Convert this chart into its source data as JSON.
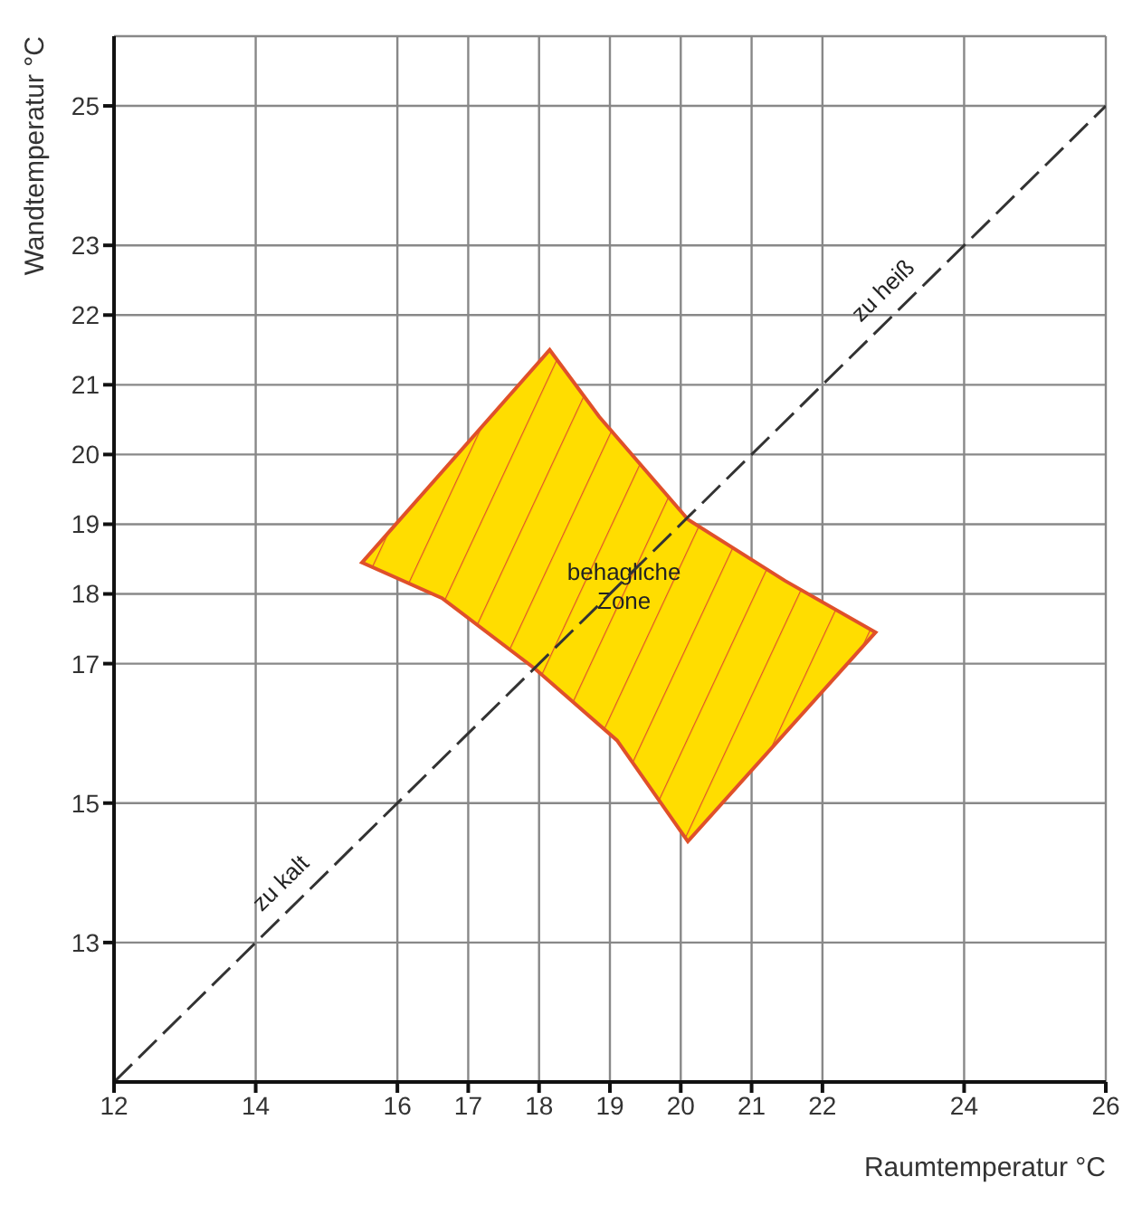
{
  "chart_data": {
    "type": "line",
    "xlabel": "Raumtemperatur °C",
    "ylabel": "Wandtemperatur °C",
    "xlim": [
      12,
      26
    ],
    "ylim": [
      11,
      26
    ],
    "xticks": [
      12,
      14,
      16,
      17,
      18,
      19,
      20,
      21,
      22,
      24,
      26
    ],
    "yticks": [
      13,
      15,
      17,
      18,
      19,
      20,
      21,
      22,
      23,
      25
    ],
    "grid": true,
    "marker": "none",
    "series": [
      {
        "color": "#333333",
        "line_style": "dashed",
        "x": [
          12,
          26
        ],
        "values": [
          11,
          25
        ]
      },
      {
        "type": "area",
        "color": "#ffdd00",
        "x": [
          15.5,
          18.15,
          18.85,
          20.1,
          21.47,
          22.75,
          20.1,
          19.1,
          17.95,
          16.63,
          15.5
        ],
        "values": [
          18.45,
          21.5,
          20.54,
          19.07,
          18.19,
          17.45,
          14.45,
          15.9,
          16.92,
          17.94,
          18.45
        ]
      }
    ],
    "annotations": [
      {
        "text": "behagliche Zone",
        "x": 19.2,
        "y": 18
      },
      {
        "text": "zu kalt",
        "x": 14.5,
        "y": 13.7
      },
      {
        "text": "zu heiß",
        "x": 23,
        "y": 22.2
      }
    ]
  }
}
